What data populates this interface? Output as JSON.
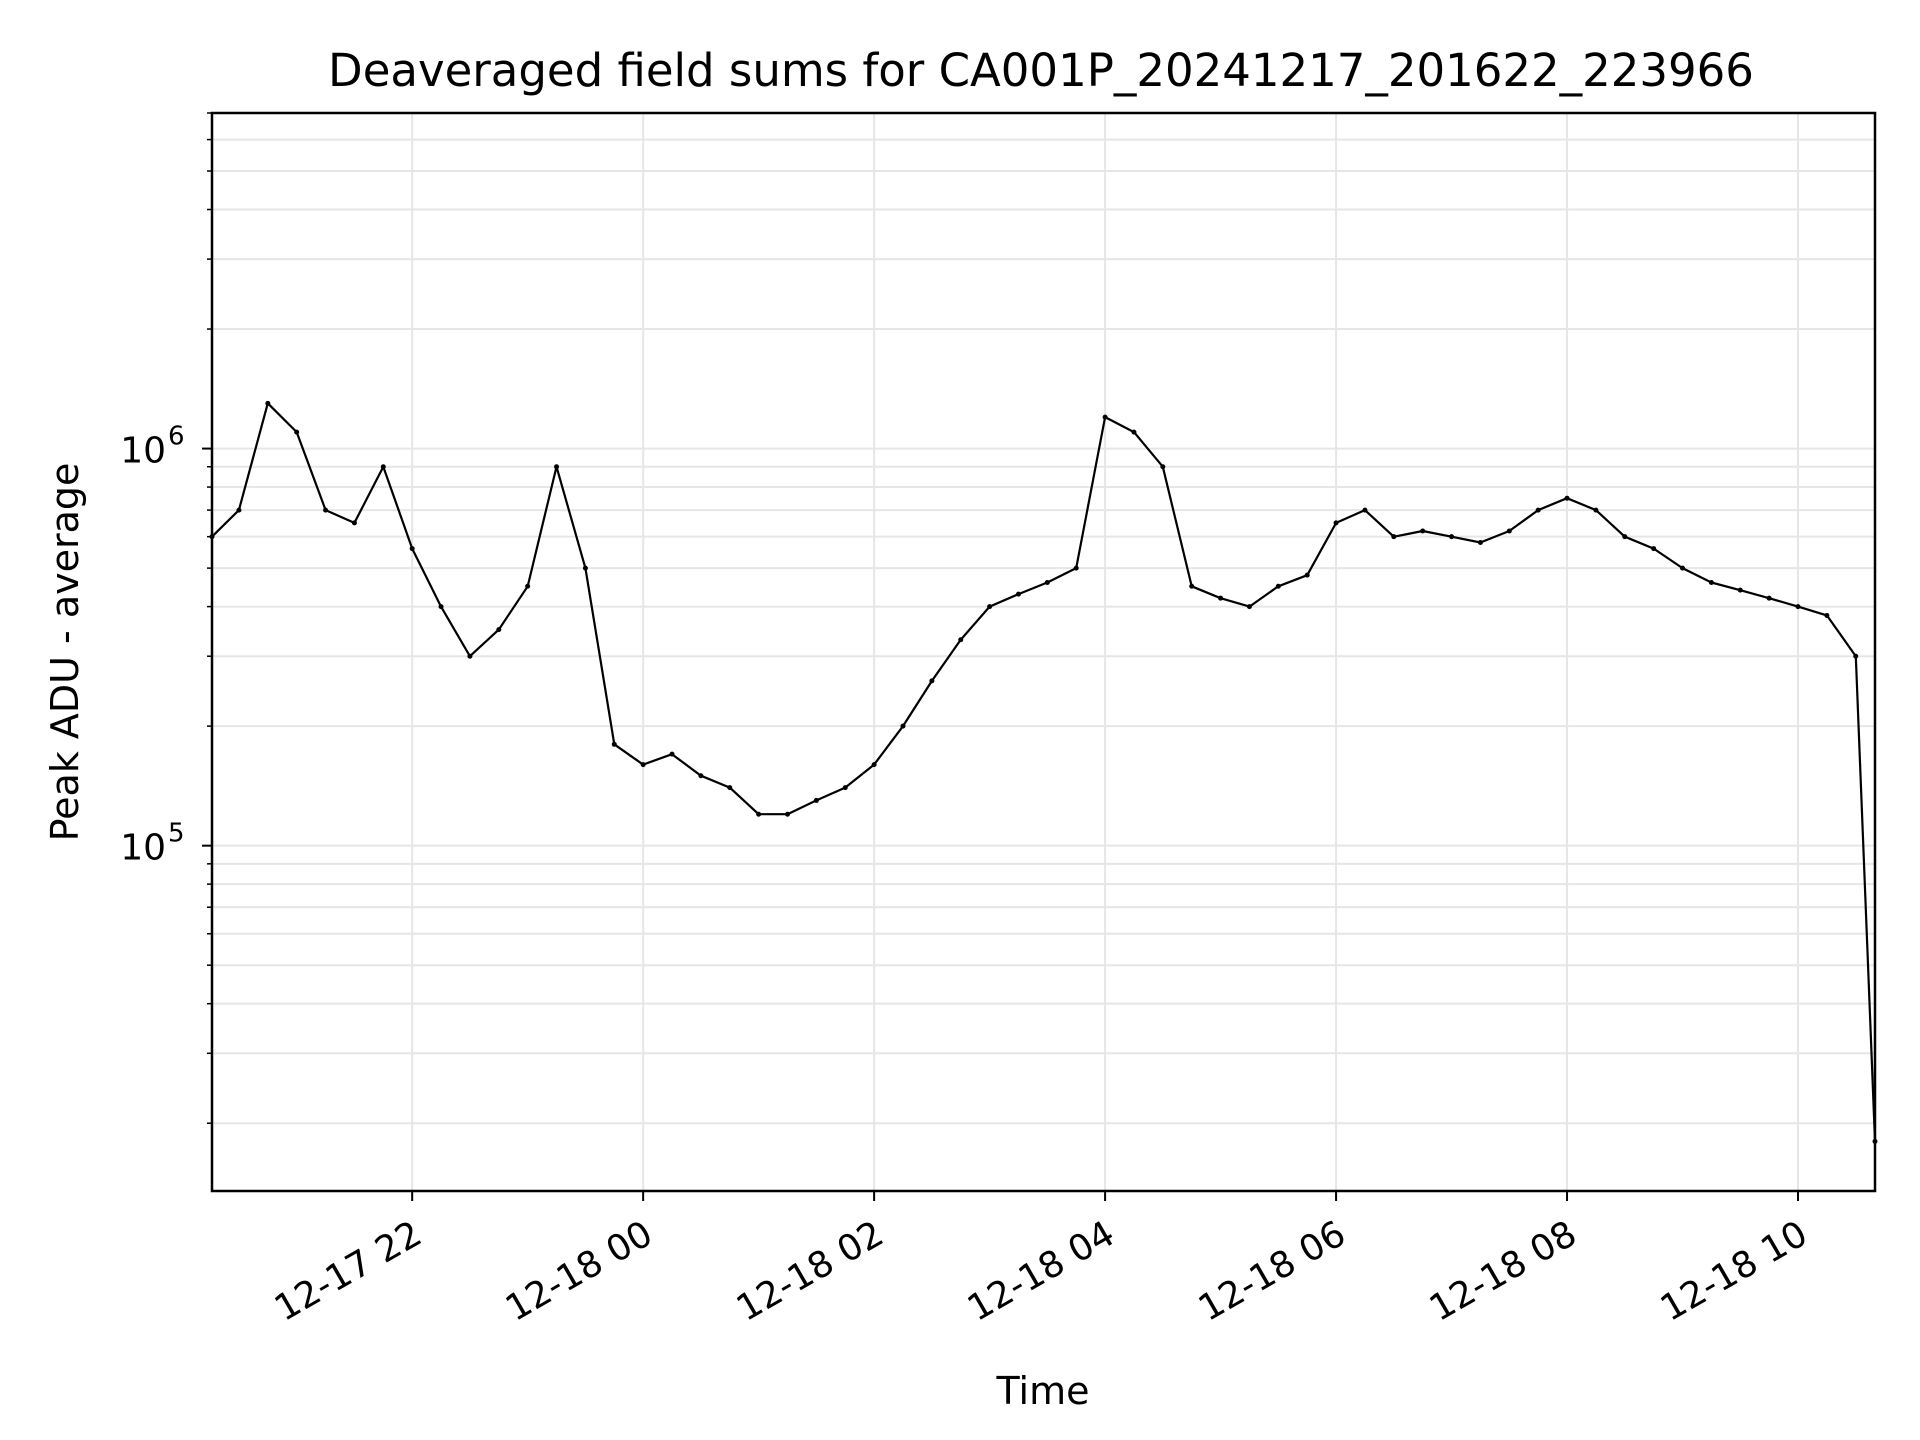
{
  "chart_data": {
    "type": "line",
    "title": "Deaveraged field sums for CA001P_20241217_201622_223966",
    "xlabel": "Time",
    "ylabel": "Peak ADU - average",
    "yscale": "log",
    "ylim": [
      13500,
      7000000
    ],
    "y_major_ticks": [
      {
        "value": 100000,
        "base": "10",
        "exp": "5"
      },
      {
        "value": 1000000,
        "base": "10",
        "exp": "6"
      }
    ],
    "y_minor_ticks": [
      20000,
      30000,
      40000,
      50000,
      60000,
      70000,
      80000,
      90000,
      200000,
      300000,
      400000,
      500000,
      600000,
      700000,
      800000,
      900000,
      2000000,
      3000000,
      4000000,
      5000000,
      6000000,
      7000000
    ],
    "xlim": [
      "2024-12-17 20:16",
      "2024-12-18 10:40"
    ],
    "x_ticks": [
      {
        "time": "2024-12-17 22:00",
        "label": "12-17 22"
      },
      {
        "time": "2024-12-18 00:00",
        "label": "12-18 00"
      },
      {
        "time": "2024-12-18 02:00",
        "label": "12-18 02"
      },
      {
        "time": "2024-12-18 04:00",
        "label": "12-18 04"
      },
      {
        "time": "2024-12-18 06:00",
        "label": "12-18 06"
      },
      {
        "time": "2024-12-18 08:00",
        "label": "12-18 08"
      },
      {
        "time": "2024-12-18 10:00",
        "label": "12-18 10"
      }
    ],
    "grid": true,
    "line_color": "#000000",
    "grid_color": "#e6e6e6",
    "series": [
      {
        "x": [
          "2024-12-17 20:16",
          "2024-12-17 20:30",
          "2024-12-17 20:45",
          "2024-12-17 21:00",
          "2024-12-17 21:15",
          "2024-12-17 21:30",
          "2024-12-17 21:45",
          "2024-12-17 22:00",
          "2024-12-17 22:15",
          "2024-12-17 22:30",
          "2024-12-17 22:45",
          "2024-12-17 23:00",
          "2024-12-17 23:15",
          "2024-12-17 23:30",
          "2024-12-17 23:45",
          "2024-12-18 00:00",
          "2024-12-18 00:15",
          "2024-12-18 00:30",
          "2024-12-18 00:45",
          "2024-12-18 01:00",
          "2024-12-18 01:15",
          "2024-12-18 01:30",
          "2024-12-18 01:45",
          "2024-12-18 02:00",
          "2024-12-18 02:15",
          "2024-12-18 02:30",
          "2024-12-18 02:45",
          "2024-12-18 03:00",
          "2024-12-18 03:15",
          "2024-12-18 03:30",
          "2024-12-18 03:45",
          "2024-12-18 04:00",
          "2024-12-18 04:15",
          "2024-12-18 04:30",
          "2024-12-18 04:45",
          "2024-12-18 05:00",
          "2024-12-18 05:15",
          "2024-12-18 05:30",
          "2024-12-18 05:45",
          "2024-12-18 06:00",
          "2024-12-18 06:15",
          "2024-12-18 06:30",
          "2024-12-18 06:45",
          "2024-12-18 07:00",
          "2024-12-18 07:15",
          "2024-12-18 07:30",
          "2024-12-18 07:45",
          "2024-12-18 08:00",
          "2024-12-18 08:15",
          "2024-12-18 08:30",
          "2024-12-18 08:45",
          "2024-12-18 09:00",
          "2024-12-18 09:15",
          "2024-12-18 09:30",
          "2024-12-18 09:45",
          "2024-12-18 10:00",
          "2024-12-18 10:15",
          "2024-12-18 10:30",
          "2024-12-18 10:40"
        ],
        "y": [
          600000,
          700000,
          1300000,
          1100000,
          700000,
          650000,
          900000,
          560000,
          400000,
          300000,
          350000,
          450000,
          900000,
          500000,
          180000,
          160000,
          170000,
          150000,
          140000,
          120000,
          120000,
          130000,
          140000,
          160000,
          200000,
          260000,
          330000,
          400000,
          430000,
          460000,
          500000,
          1200000,
          1100000,
          900000,
          450000,
          420000,
          400000,
          450000,
          480000,
          650000,
          700000,
          600000,
          620000,
          600000,
          580000,
          620000,
          700000,
          750000,
          700000,
          600000,
          560000,
          500000,
          460000,
          440000,
          420000,
          400000,
          380000,
          300000,
          18000
        ]
      }
    ]
  }
}
